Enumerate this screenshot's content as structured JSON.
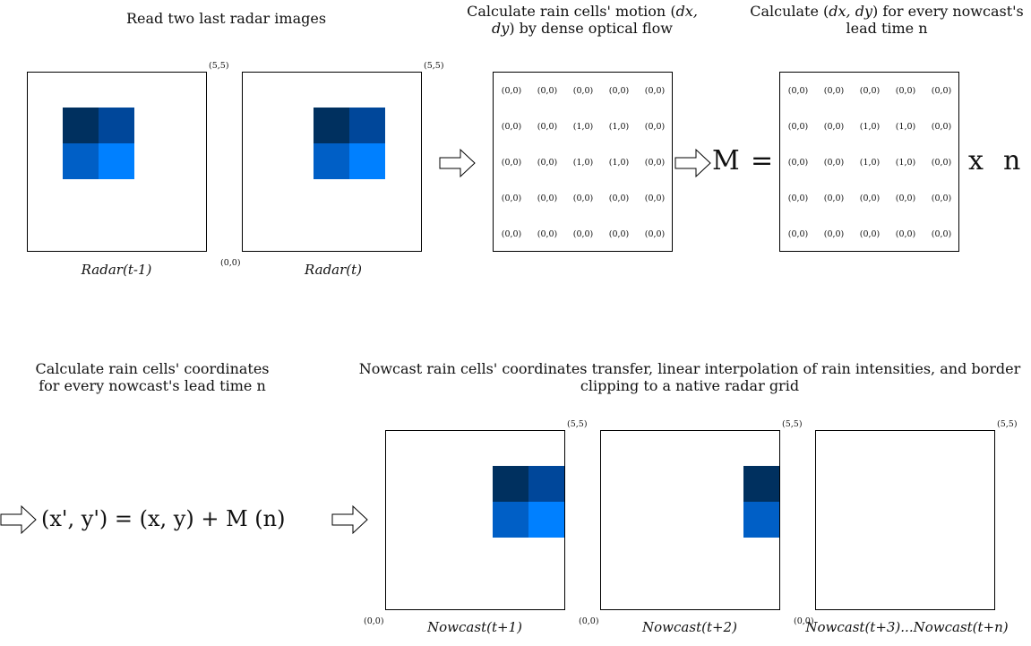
{
  "captions": {
    "read_radar": "Read two last radar images",
    "motion_line1": "Calculate rain cells' motion (",
    "motion_dx": "dx,",
    "motion_line2_a": "dy",
    "motion_line2_b": ") by dense optical flow",
    "leadtime_line1_a": "Calculate (",
    "leadtime_dxdy": "dx, dy",
    "leadtime_line1_b": ") for every nowcast's",
    "leadtime_line2": "lead time n",
    "coords_line1": "Calculate rain cells' coordinates",
    "coords_line2": "for every nowcast's lead time n",
    "transfer_line1": "Nowcast rain cells' coordinates transfer, linear interpolation of rain intensities, and border",
    "transfer_line2": "clipping to a native radar grid"
  },
  "corners": {
    "top_right": "(5,5)",
    "origin": "(0,0)"
  },
  "panel_labels": {
    "radar_prev": "Radar(t-1)",
    "radar_now": "Radar(t)",
    "nowcast_1": "Nowcast(t+1)",
    "nowcast_2": "Nowcast(t+2)",
    "nowcast_n": "Nowcast(t+3)...Nowcast(t+n)"
  },
  "flow_matrix": [
    [
      "(0,0)",
      "(0,0)",
      "(0,0)",
      "(0,0)",
      "(0,0)"
    ],
    [
      "(0,0)",
      "(0,0)",
      "(1,0)",
      "(1,0)",
      "(0,0)"
    ],
    [
      "(0,0)",
      "(0,0)",
      "(1,0)",
      "(1,0)",
      "(0,0)"
    ],
    [
      "(0,0)",
      "(0,0)",
      "(0,0)",
      "(0,0)",
      "(0,0)"
    ],
    [
      "(0,0)",
      "(0,0)",
      "(0,0)",
      "(0,0)",
      "(0,0)"
    ]
  ],
  "formula": {
    "m_symbol": "M",
    "equals": "=",
    "times": "x",
    "n_symbol": "n",
    "coord_equation": "(x', y') = (x, y) + M (n)"
  },
  "colors": {
    "cell_darkest": "#00305f",
    "cell_dark": "#00479a",
    "cell_medium": "#005fc6",
    "cell_light": "#0080ff"
  }
}
